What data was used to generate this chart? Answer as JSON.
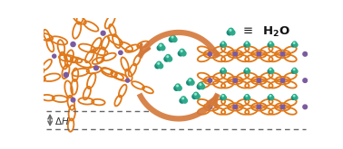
{
  "background_color": "#ffffff",
  "arrow_color": "#D4783A",
  "dashed_line_color": "#666666",
  "orange_ring_color": "#E07818",
  "purple_node_color": "#7B5BA0",
  "teal_dark": "#1A8A7A",
  "teal_mid": "#2EAA8A",
  "teal_light": "#50CC9A",
  "teal_highlight": "#90EED0",
  "fig_width": 3.78,
  "fig_height": 1.65,
  "dpi": 100
}
